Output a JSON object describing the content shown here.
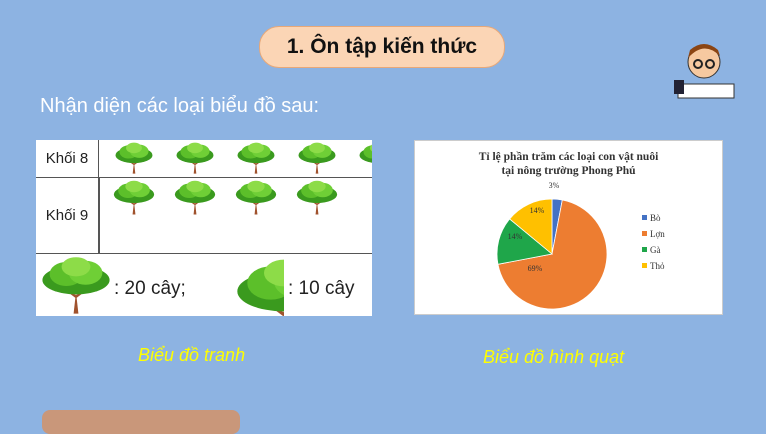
{
  "title": "1. Ôn tập kiến thức",
  "prompt": "Nhận diện các loại biểu đồ sau:",
  "pictograph": {
    "rows": [
      {
        "label": "Khối 8",
        "trees": 4.2
      },
      {
        "label": "Khối 9",
        "trees": 4
      }
    ],
    "key_full": ": 20 cây;",
    "key_half": ": 10 cây"
  },
  "captions": {
    "left": "Biểu đồ tranh",
    "right": "Biểu đồ hình quạt"
  },
  "chart_data": {
    "type": "pie",
    "title": "Tỉ lệ phần trăm các loại con vật nuôi tại nông trường Phong Phú",
    "title_lines": [
      "Tỉ lệ phần trăm các loại con vật nuôi",
      "tại nông trường Phong Phú"
    ],
    "categories": [
      "Bò",
      "Lợn",
      "Gà",
      "Thỏ"
    ],
    "values": [
      3,
      69,
      14,
      14
    ],
    "labels": [
      "3%",
      "69%",
      "14%",
      "14%"
    ],
    "colors": [
      "#4472c4",
      "#ed7d31",
      "#1fa64a",
      "#ffc000"
    ],
    "legend": "right"
  }
}
